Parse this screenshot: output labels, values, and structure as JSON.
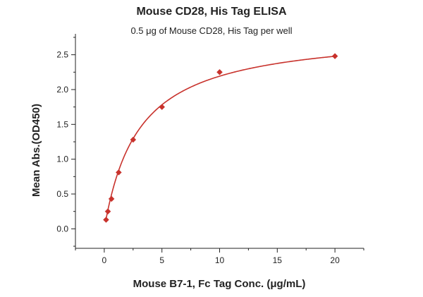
{
  "chart_data": {
    "type": "scatter",
    "title": "Mouse CD28, His Tag ELISA",
    "subtitle": "0.5 μg of Mouse CD28, His Tag per well",
    "xlabel": "Mouse B7-1, Fc Tag Conc. (μg/mL)",
    "ylabel": "Mean Abs.(OD450)",
    "xlim": [
      -2.5,
      22.5
    ],
    "ylim": [
      -0.28,
      2.8
    ],
    "xticks": [
      0,
      5,
      10,
      15,
      20
    ],
    "yticks": [
      0.0,
      0.5,
      1.0,
      1.5,
      2.0,
      2.5
    ],
    "xtick_labels": [
      "0",
      "5",
      "10",
      "15",
      "20"
    ],
    "ytick_labels": [
      "0.0",
      "0.5",
      "1.0",
      "1.5",
      "2.0",
      "2.5"
    ],
    "grid": false,
    "legend": "none",
    "series": [
      {
        "marker": "diamond",
        "color": "#c8322c",
        "x": [
          0.156,
          0.313,
          0.625,
          1.25,
          2.5,
          5,
          10,
          20
        ],
        "y": [
          0.13,
          0.25,
          0.43,
          0.81,
          1.28,
          1.75,
          2.25,
          2.48
        ]
      }
    ],
    "fit_curve": {
      "model": "hyperbolic",
      "color": "#c8322c",
      "bottom": 0.0,
      "top": 2.85,
      "ec50": 3.0,
      "x_range": [
        0.156,
        20
      ]
    }
  }
}
